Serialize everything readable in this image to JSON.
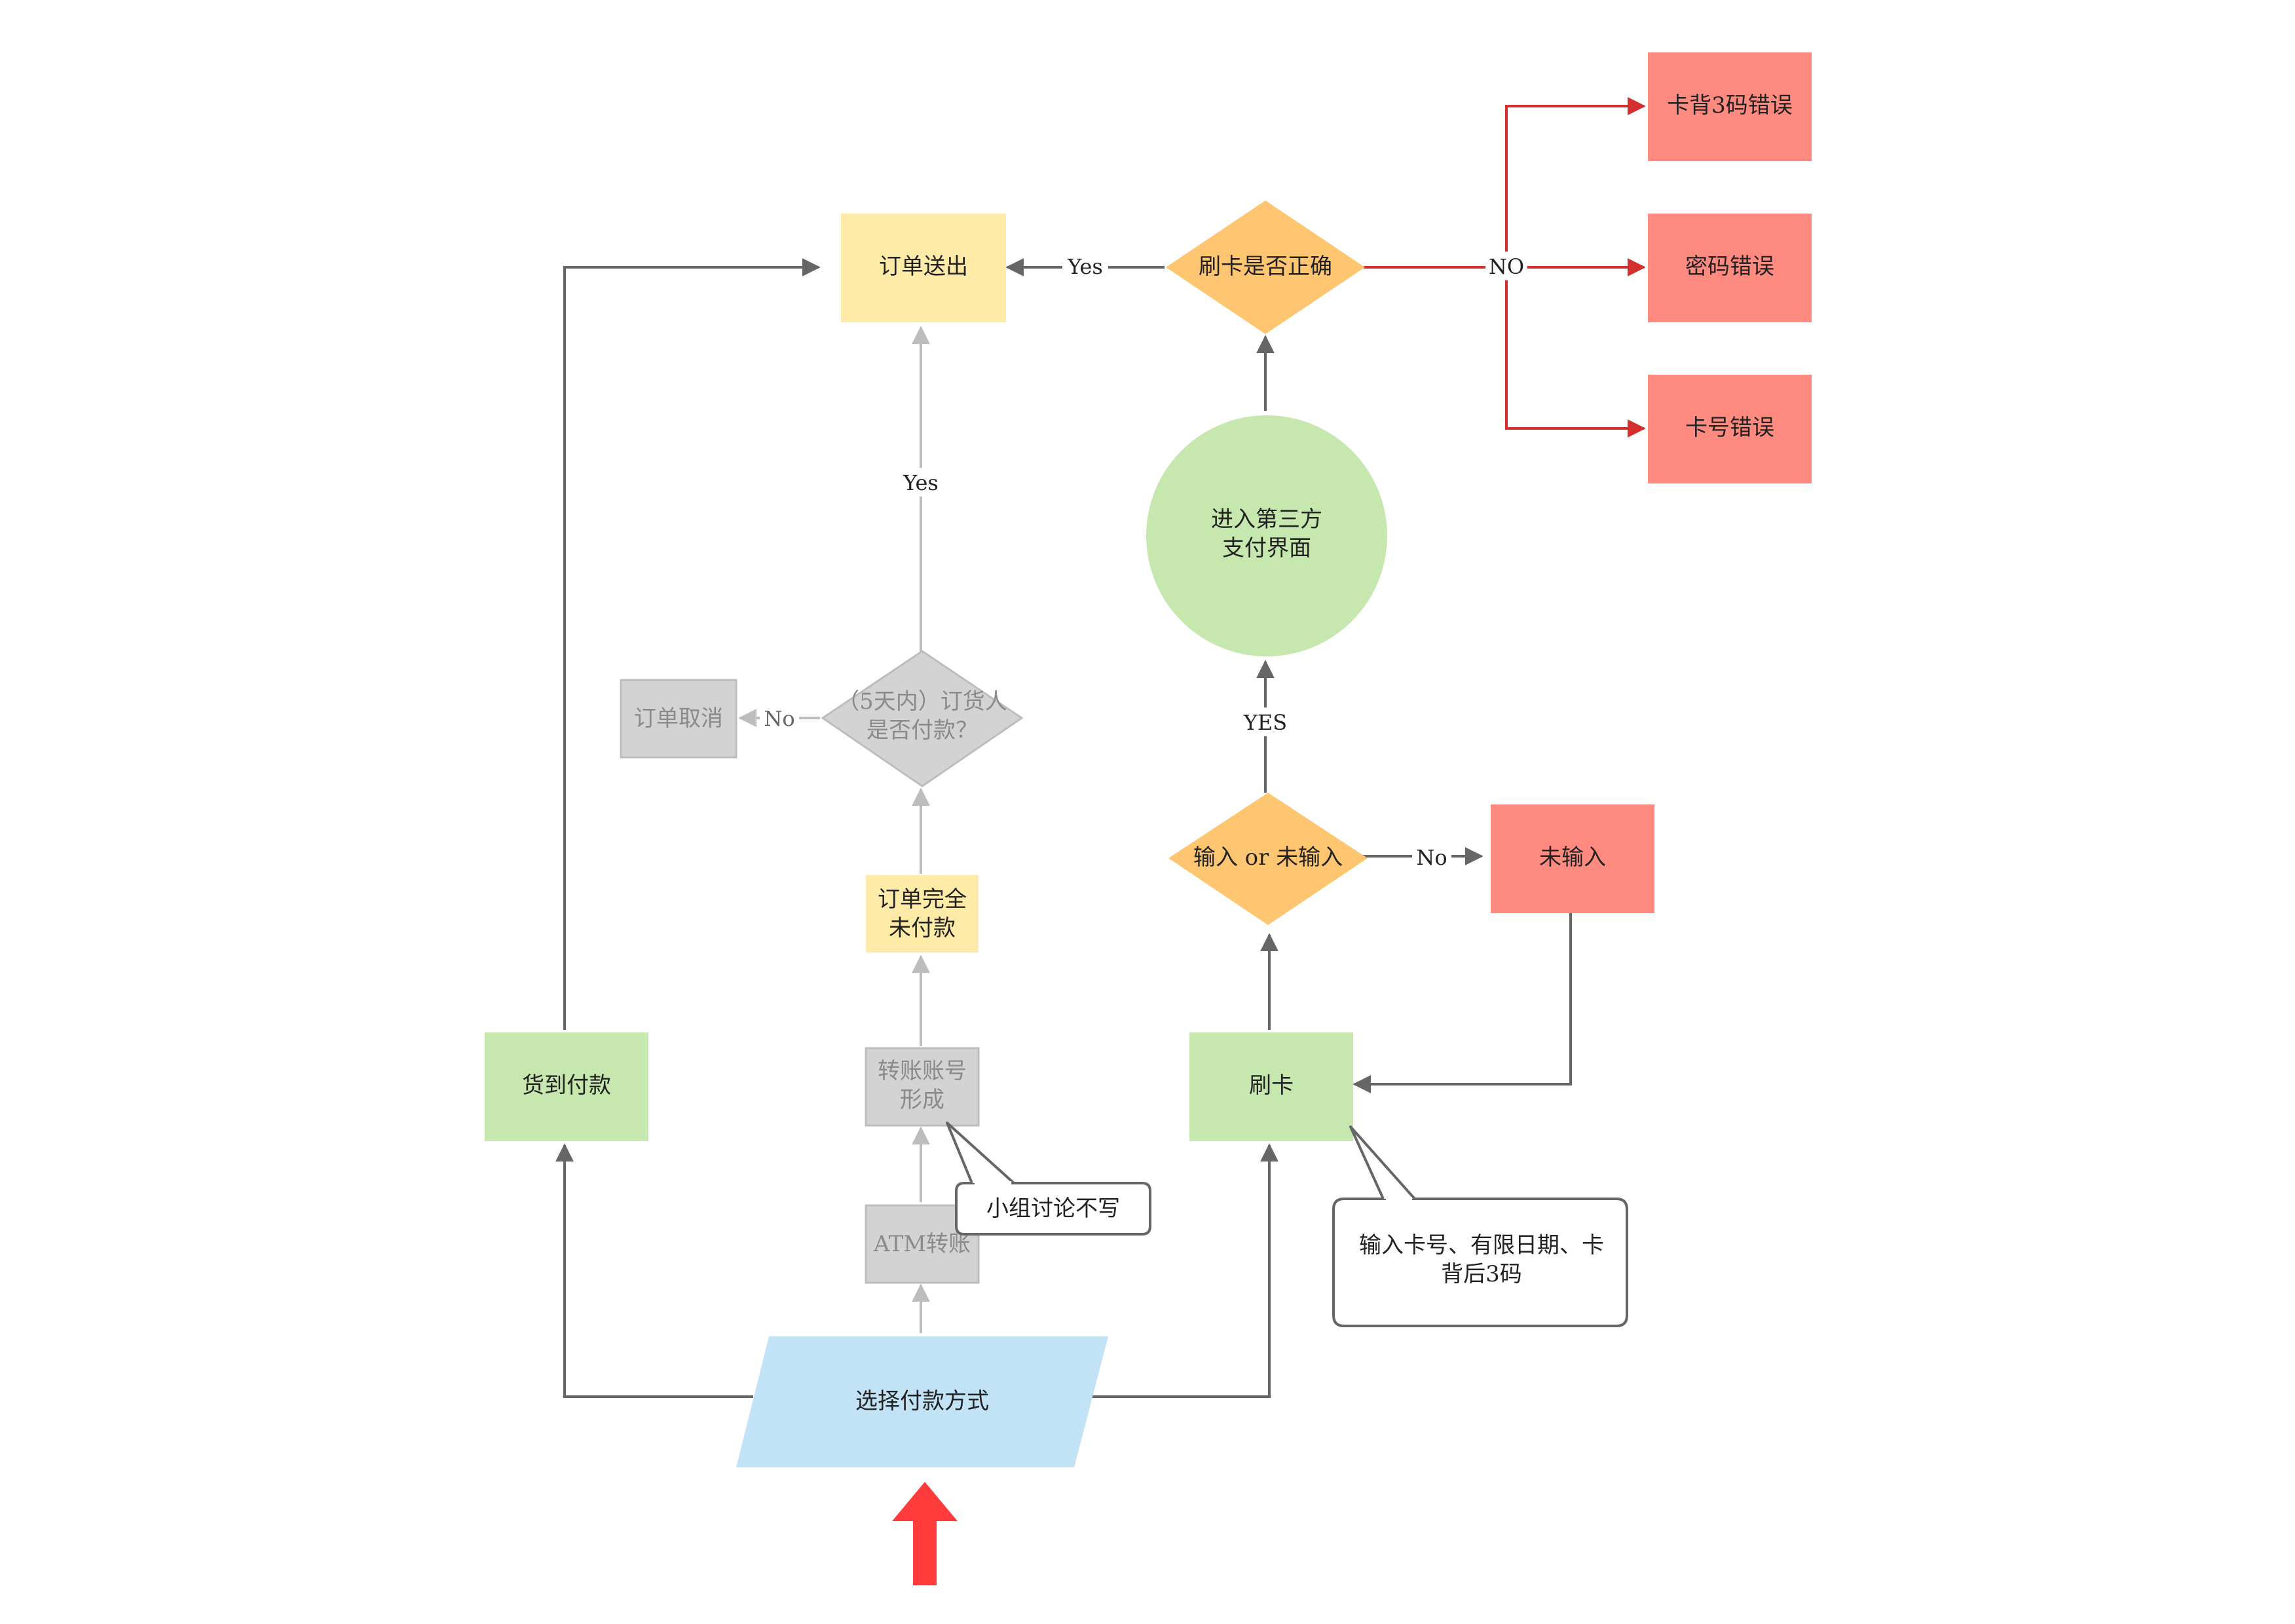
{
  "colors": {
    "yellow": "#FFEBA8",
    "orange": "#FFC672",
    "green": "#C6E7AD",
    "red": "#FF8A80",
    "gray": "#D3D3D3",
    "blue": "#C2E3F6",
    "edge_dark": "#666666",
    "edge_light": "#BDBDBD",
    "edge_red": "#D32F2F",
    "start_arrow": "#FF3B3B"
  },
  "nodes": {
    "order_sent": "订单送出",
    "card_correct_1": "刷卡是否正确",
    "cvv_error": "卡背3码错误",
    "password_error": "密码错误",
    "card_number_error": "卡号错误",
    "third_party_1": "进入第三方",
    "third_party_2": "支付界面",
    "input_or_not": "输入 or 未输入",
    "not_input": "未输入",
    "swipe_card": "刷卡",
    "cod": "货到付款",
    "order_cancel": "订单取消",
    "pay_check_1": "（5天内）订货人",
    "pay_check_2": "是否付款？",
    "unpaid_1": "订单完全",
    "unpaid_2": "未付款",
    "transfer_1": "转账账号",
    "transfer_2": "形成",
    "atm": "ATM转账",
    "choose_payment": "选择付款方式"
  },
  "callouts": {
    "group_note": "小组讨论不写",
    "card_input_1": "输入卡号、有限日期、卡",
    "card_input_2": "背后3码"
  },
  "edge_labels": {
    "yes_card_to_order": "Yes",
    "no_card_errors": "NO",
    "yes_pay_to_order": "Yes",
    "no_pay_cancel": "No",
    "yes_input_to_third": "YES",
    "no_input": "No"
  }
}
